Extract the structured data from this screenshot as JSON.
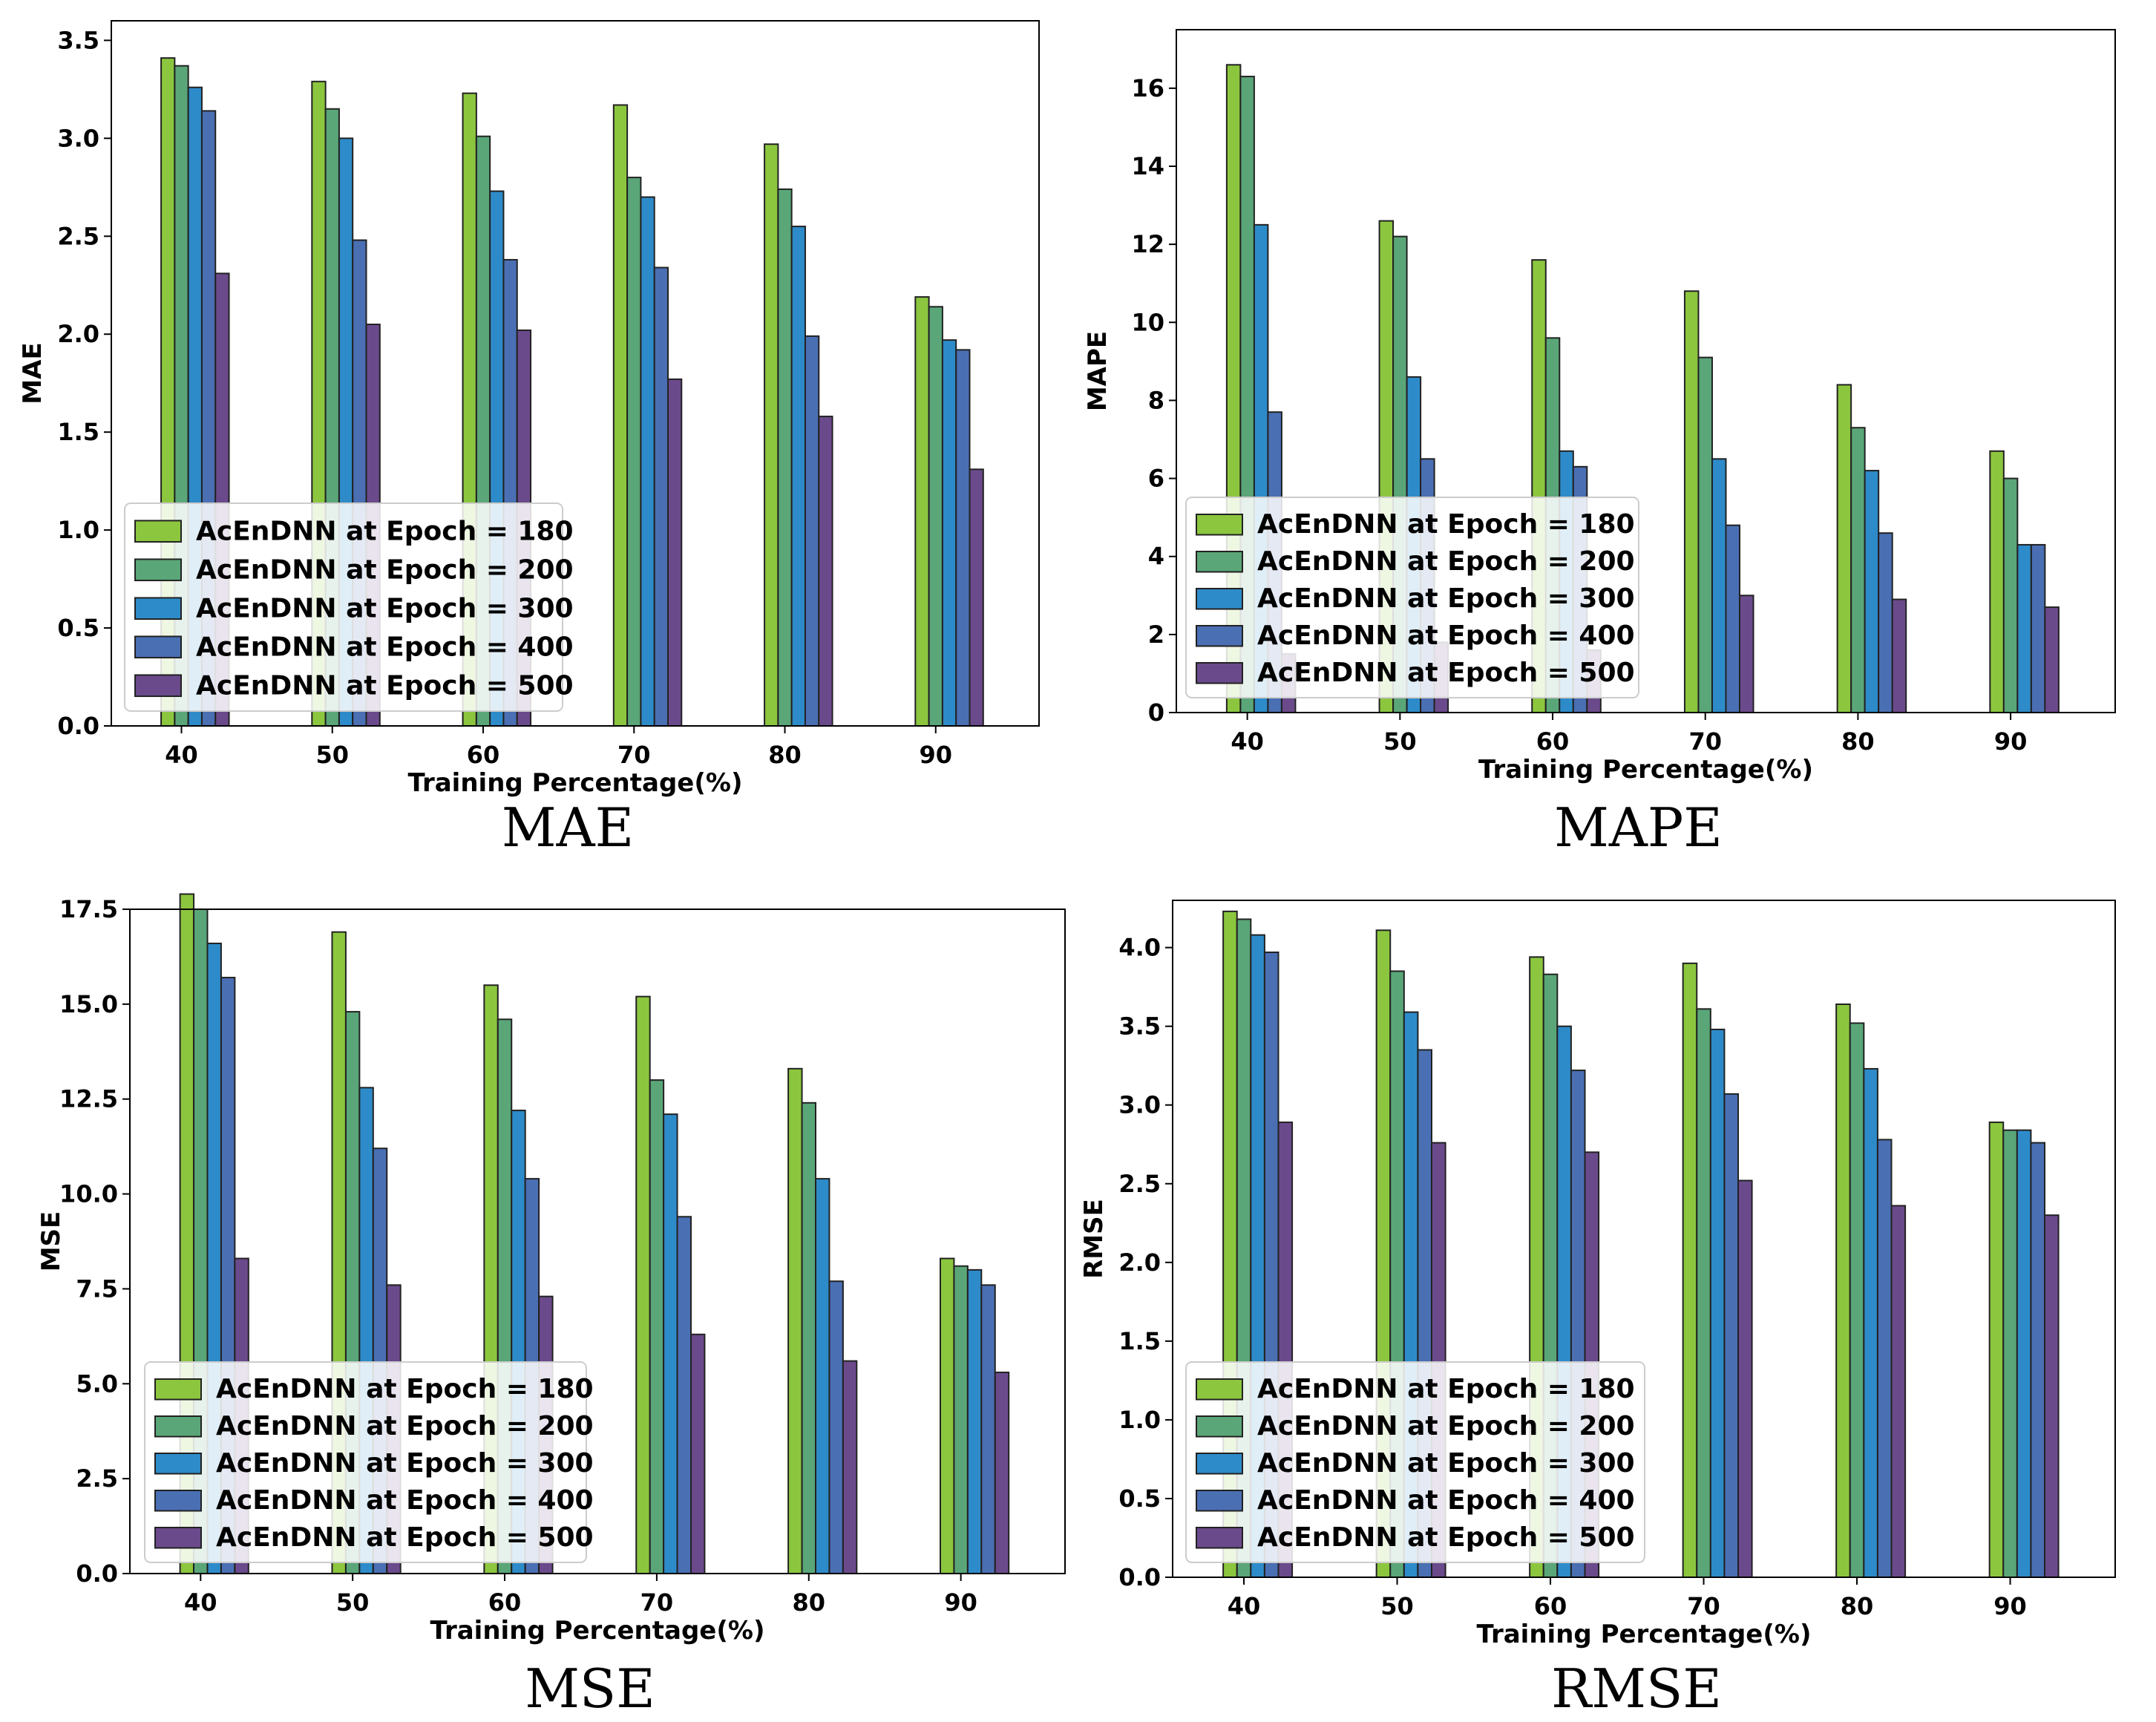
{
  "series_colors": [
    "#8cc63f",
    "#5aa678",
    "#2e8bc9",
    "#4a6fb3",
    "#6b4a8c"
  ],
  "chart_data": [
    {
      "type": "bar",
      "title": "MAE",
      "xlabel": "Training Percentage(%)",
      "ylabel": "MAE",
      "categories": [
        "40",
        "50",
        "60",
        "70",
        "80",
        "90"
      ],
      "ylim": [
        0,
        3.6
      ],
      "yticks": [
        "0.0",
        "0.5",
        "1.0",
        "1.5",
        "2.0",
        "2.5",
        "3.0",
        "3.5"
      ],
      "legend_position": "lower-left",
      "series": [
        {
          "name": "AcEnDNN at Epoch = 180",
          "values": [
            3.41,
            3.29,
            3.23,
            3.17,
            2.97,
            2.19
          ]
        },
        {
          "name": "AcEnDNN at Epoch = 200",
          "values": [
            3.37,
            3.15,
            3.01,
            2.8,
            2.74,
            2.14
          ]
        },
        {
          "name": "AcEnDNN at Epoch = 300",
          "values": [
            3.26,
            3.0,
            2.73,
            2.7,
            2.55,
            1.97
          ]
        },
        {
          "name": "AcEnDNN at Epoch = 400",
          "values": [
            3.14,
            2.48,
            2.38,
            2.34,
            1.99,
            1.92
          ]
        },
        {
          "name": "AcEnDNN at Epoch = 500",
          "values": [
            2.31,
            2.05,
            2.02,
            1.77,
            1.58,
            1.31
          ]
        }
      ]
    },
    {
      "type": "bar",
      "title": "MAPE",
      "xlabel": "Training Percentage(%)",
      "ylabel": "MAPE",
      "categories": [
        "40",
        "50",
        "60",
        "70",
        "80",
        "90"
      ],
      "ylim": [
        0,
        17.5
      ],
      "yticks": [
        "0",
        "2",
        "4",
        "6",
        "8",
        "10",
        "12",
        "14",
        "16"
      ],
      "legend_position": "lower-left",
      "series": [
        {
          "name": "AcEnDNN at Epoch = 180",
          "values": [
            16.6,
            12.6,
            11.6,
            10.8,
            8.4,
            6.7
          ]
        },
        {
          "name": "AcEnDNN at Epoch = 200",
          "values": [
            16.3,
            12.2,
            9.6,
            9.1,
            7.3,
            6.0
          ]
        },
        {
          "name": "AcEnDNN at Epoch = 300",
          "values": [
            12.5,
            8.6,
            6.7,
            6.5,
            6.2,
            4.3
          ]
        },
        {
          "name": "AcEnDNN at Epoch = 400",
          "values": [
            7.7,
            6.5,
            6.3,
            4.8,
            4.6,
            4.3
          ]
        },
        {
          "name": "AcEnDNN at Epoch = 500",
          "values": [
            1.5,
            1.8,
            1.6,
            3.0,
            2.9,
            2.7
          ]
        }
      ]
    },
    {
      "type": "bar",
      "title": "MSE",
      "xlabel": "Training Percentage(%)",
      "ylabel": "MSE",
      "categories": [
        "40",
        "50",
        "60",
        "70",
        "80",
        "90"
      ],
      "ylim": [
        0,
        17.5
      ],
      "yticks": [
        "0.0",
        "2.5",
        "5.0",
        "7.5",
        "10.0",
        "12.5",
        "15.0",
        "17.5"
      ],
      "legend_position": "lower-left",
      "series": [
        {
          "name": "AcEnDNN at Epoch = 180",
          "values": [
            17.9,
            16.9,
            15.5,
            15.2,
            13.3,
            8.3
          ]
        },
        {
          "name": "AcEnDNN at Epoch = 200",
          "values": [
            17.5,
            14.8,
            14.6,
            13.0,
            12.4,
            8.1
          ]
        },
        {
          "name": "AcEnDNN at Epoch = 300",
          "values": [
            16.6,
            12.8,
            12.2,
            12.1,
            10.4,
            8.0
          ]
        },
        {
          "name": "AcEnDNN at Epoch = 400",
          "values": [
            15.7,
            11.2,
            10.4,
            9.4,
            7.7,
            7.6
          ]
        },
        {
          "name": "AcEnDNN at Epoch = 500",
          "values": [
            8.3,
            7.6,
            7.3,
            6.3,
            5.6,
            5.3
          ]
        }
      ]
    },
    {
      "type": "bar",
      "title": "RMSE",
      "xlabel": "Training Percentage(%)",
      "ylabel": "RMSE",
      "categories": [
        "40",
        "50",
        "60",
        "70",
        "80",
        "90"
      ],
      "ylim": [
        0,
        4.3
      ],
      "yticks": [
        "0.0",
        "0.5",
        "1.0",
        "1.5",
        "2.0",
        "2.5",
        "3.0",
        "3.5",
        "4.0"
      ],
      "legend_position": "lower-left",
      "series": [
        {
          "name": "AcEnDNN at Epoch = 180",
          "values": [
            4.23,
            4.11,
            3.94,
            3.9,
            3.64,
            2.89
          ]
        },
        {
          "name": "AcEnDNN at Epoch = 200",
          "values": [
            4.18,
            3.85,
            3.83,
            3.61,
            3.52,
            2.84
          ]
        },
        {
          "name": "AcEnDNN at Epoch = 300",
          "values": [
            4.08,
            3.59,
            3.5,
            3.48,
            3.23,
            2.84
          ]
        },
        {
          "name": "AcEnDNN at Epoch = 400",
          "values": [
            3.97,
            3.35,
            3.22,
            3.07,
            2.78,
            2.76
          ]
        },
        {
          "name": "AcEnDNN at Epoch = 500",
          "values": [
            2.89,
            2.76,
            2.7,
            2.52,
            2.36,
            2.3
          ]
        }
      ]
    }
  ]
}
